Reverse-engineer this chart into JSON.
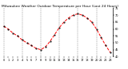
{
  "title": "Milwaukee Weather Outdoor Temperature per Hour (Last 24 Hours)",
  "hours": [
    0,
    1,
    2,
    3,
    4,
    5,
    6,
    7,
    8,
    9,
    10,
    11,
    12,
    13,
    14,
    15,
    16,
    17,
    18,
    19,
    20,
    21,
    22,
    23
  ],
  "temperatures": [
    62,
    60,
    57,
    55,
    52,
    50,
    48,
    46,
    45,
    47,
    51,
    56,
    61,
    65,
    68,
    70,
    71,
    70,
    68,
    65,
    60,
    54,
    48,
    43
  ],
  "line_color": "#ff0000",
  "marker_color": "#000000",
  "background_color": "#ffffff",
  "grid_color": "#888888",
  "ylim": [
    40,
    75
  ],
  "yticks": [
    40,
    45,
    50,
    55,
    60,
    65,
    70,
    75
  ],
  "grid_hours": [
    0,
    4,
    8,
    12,
    16,
    20
  ],
  "title_fontsize": 3.2,
  "axis_fontsize": 2.5,
  "line_width": 0.7,
  "marker_size": 1.0
}
